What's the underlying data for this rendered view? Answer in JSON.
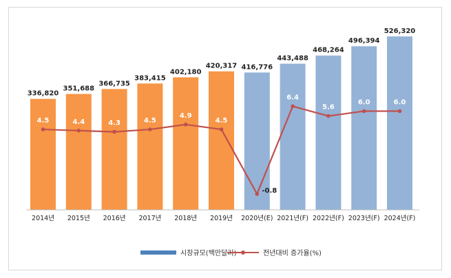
{
  "chart_data": {
    "type": "bar",
    "categories": [
      "2014년",
      "2015년",
      "2016년",
      "2017년",
      "2018년",
      "2019년",
      "2020년(E)",
      "2021년(F)",
      "2022년(F)",
      "2023년(F)",
      "2024년(F)"
    ],
    "series": [
      {
        "name": "시장규모(백만달러)",
        "type": "bar",
        "values": [
          336820,
          351688,
          366735,
          383415,
          402180,
          420317,
          416776,
          443488,
          468264,
          496394,
          526320
        ],
        "labels": [
          "336,820",
          "351,688",
          "366,735",
          "383,415",
          "402,180",
          "420,317",
          "416,776",
          "443,488",
          "468,264",
          "496,394",
          "526,320"
        ]
      },
      {
        "name": "전년대비 증가율(%)",
        "type": "line",
        "values": [
          4.5,
          4.4,
          4.3,
          4.5,
          4.9,
          4.5,
          -0.8,
          6.4,
          5.6,
          6.0,
          6.0
        ],
        "labels": [
          "4.5",
          "4.4",
          "4.3",
          "4.5",
          "4.9",
          "4.5",
          "-0.8",
          "6.4",
          "5.6",
          "6.0",
          "6.0"
        ]
      }
    ],
    "colors": {
      "actual_bar": "#f79646",
      "forecast_bar": "#95b3d7",
      "line": "#c0504d",
      "legend_bar": "#4f81bd"
    },
    "legend_position": "bottom",
    "grid": false
  }
}
